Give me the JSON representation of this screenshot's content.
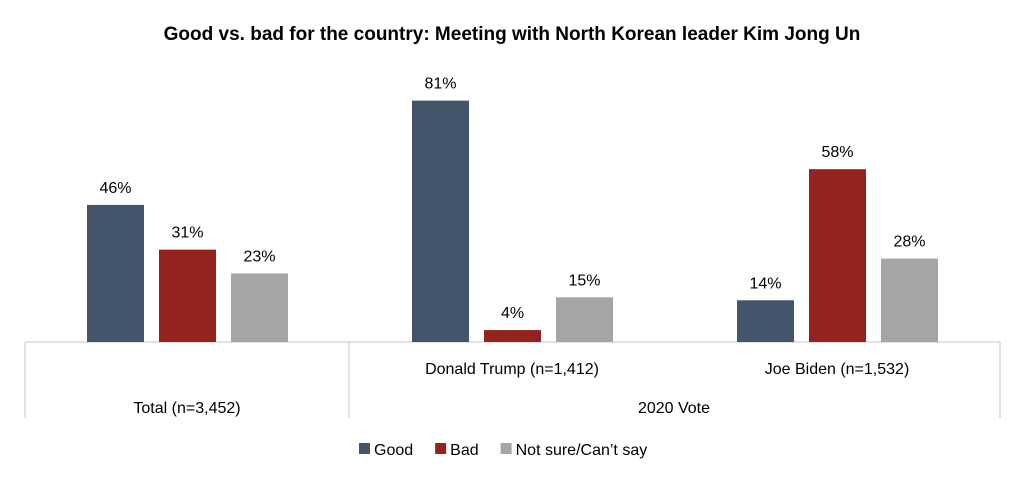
{
  "chart_data": {
    "type": "bar",
    "title": "Good vs. bad for the country: Meeting with North Korean leader Kim Jong Un",
    "categories": [
      "Total (n=3,452)",
      "Donald Trump (n=1,412)",
      "Joe Biden (n=1,532)"
    ],
    "group_label": "2020 Vote",
    "series": [
      {
        "name": "Good",
        "color": "#44546a",
        "values": [
          46,
          81,
          14
        ]
      },
      {
        "name": "Bad",
        "color": "#94231f",
        "values": [
          31,
          4,
          58
        ]
      },
      {
        "name": "Not sure/Can’t say",
        "color": "#a5a5a5",
        "values": [
          23,
          15,
          28
        ]
      }
    ],
    "value_suffix": "%",
    "ylim": [
      0,
      100
    ],
    "grid": false,
    "legend": "bottom"
  }
}
